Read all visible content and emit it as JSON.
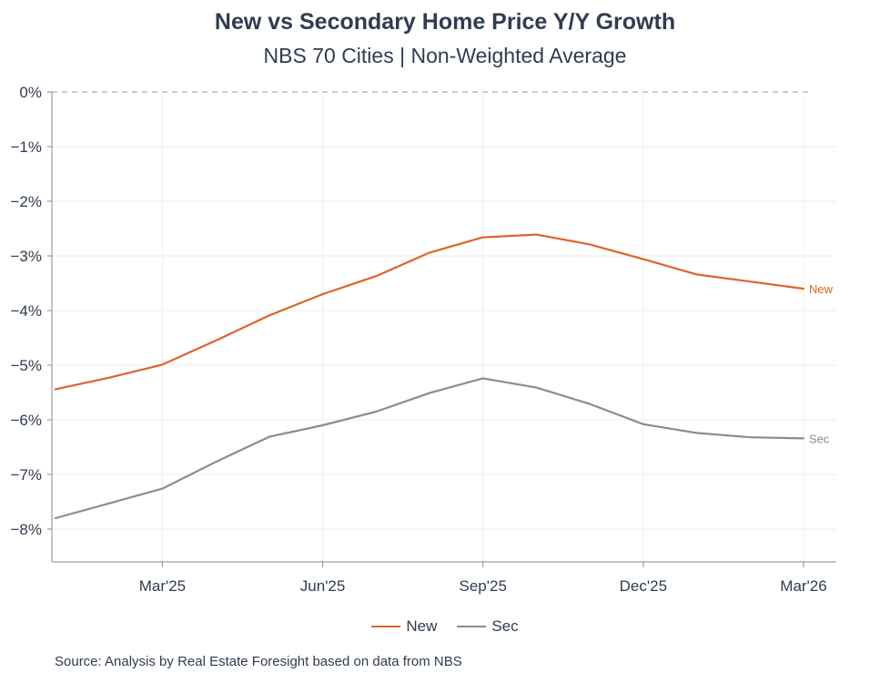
{
  "chart_data": {
    "type": "line",
    "title": "New vs Secondary Home Price Y/Y Growth",
    "subtitle": "NBS 70 Cities | Non-Weighted Average",
    "x": [
      "Jan'25",
      "Feb'25",
      "Mar'25",
      "Apr'25",
      "May'25",
      "Jun'25",
      "Jul'25",
      "Aug'25",
      "Sep'25",
      "Oct'25",
      "Nov'25",
      "Dec'25",
      "Jan'26",
      "Feb'26",
      "Mar'26"
    ],
    "x_tick_labels": [
      "Mar'25",
      "Jun'25",
      "Sep'25",
      "Dec'25",
      "Mar'26"
    ],
    "y_tick_labels": [
      "0%",
      "−1%",
      "−2%",
      "−3%",
      "−4%",
      "−5%",
      "−6%",
      "−7%",
      "−8%"
    ],
    "ylim": [
      -8.6,
      0
    ],
    "series": [
      {
        "name": "New",
        "color": "#e0622a",
        "values": [
          -5.44,
          -5.23,
          -4.99,
          -4.55,
          -4.09,
          -3.7,
          -3.37,
          -2.94,
          -2.66,
          -2.61,
          -2.79,
          -3.06,
          -3.34,
          -3.47,
          -3.6
        ]
      },
      {
        "name": "Sec",
        "color": "#8c8c8c",
        "values": [
          -7.8,
          -7.53,
          -7.26,
          -6.77,
          -6.31,
          -6.1,
          -5.85,
          -5.51,
          -5.24,
          -5.41,
          -5.71,
          -6.08,
          -6.24,
          -6.32,
          -6.34
        ]
      }
    ],
    "grid": true,
    "legend": "bottom-center",
    "zero_line": "dashed"
  },
  "legend": {
    "new_label": "New",
    "sec_label": "Sec"
  },
  "source_text": "Source: Analysis by Real Estate Foresight based on data from NBS"
}
